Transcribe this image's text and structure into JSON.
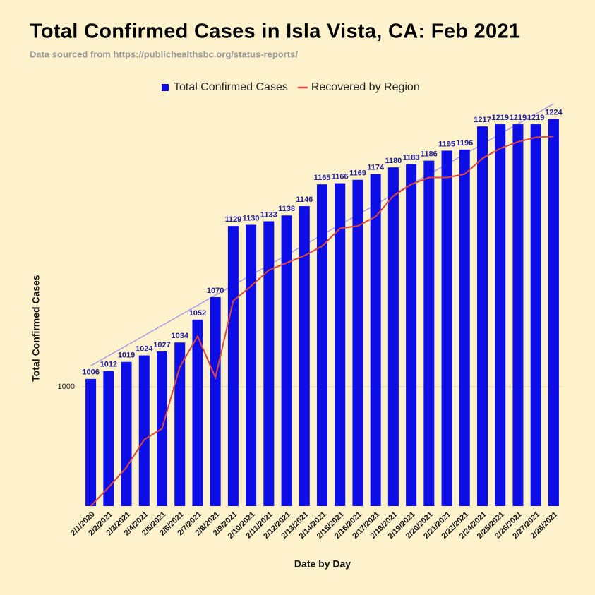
{
  "chart_data": {
    "type": "bar",
    "title": "Total Confirmed Cases in Isla Vista, CA: Feb 2021",
    "subtitle": "Data sourced from https://publichealthsbc.org/status-reports/",
    "x_label": "Date by Day",
    "y_label": "Total Confirmed Cases",
    "categories": [
      "2/1/2020",
      "2/2/2021",
      "2/3/2021",
      "2/4/2021",
      "2/5/2021",
      "2/6/2021",
      "2/7/2021",
      "2/8/2021",
      "2/9/2021",
      "2/10/2021",
      "2/11/2021",
      "2/12/2021",
      "2/13/2021",
      "2/14/2021",
      "2/15/2021",
      "2/16/2021",
      "2/17/2021",
      "2/18/2021",
      "2/19/2021",
      "2/20/2021",
      "2/21/2021",
      "2/22/2021",
      "2/24/2021",
      "2/25/2021",
      "2/26/2021",
      "2/27/2021",
      "2/28/2021"
    ],
    "series": [
      {
        "name": "Total Confirmed Cases",
        "type": "bar",
        "color": "#0d0de6",
        "values": [
          1006,
          1012,
          1019,
          1024,
          1027,
          1034,
          1052,
          1070,
          1129,
          1130,
          1133,
          1138,
          1146,
          1165,
          1166,
          1169,
          1174,
          1180,
          1183,
          1186,
          1195,
          1196,
          1217,
          1219,
          1219,
          1219,
          1224
        ]
      },
      {
        "name": "Recovered by Region",
        "type": "line",
        "color": "#e0463a",
        "values": [
          914,
          927,
          941,
          961,
          969,
          1015,
          1039,
          1007,
          1067,
          1079,
          1092,
          1098,
          1104,
          1112,
          1127,
          1129,
          1137,
          1155,
          1165,
          1171,
          1171,
          1174,
          1188,
          1197,
          1203,
          1207,
          1208
        ]
      }
    ],
    "trendline": {
      "color": "#a99be6",
      "values": [
        1016,
        1238
      ]
    },
    "yscale": "log",
    "ylim": [
      914,
      1240
    ],
    "yticks": [
      1000
    ],
    "grid": true,
    "legend": "top"
  }
}
